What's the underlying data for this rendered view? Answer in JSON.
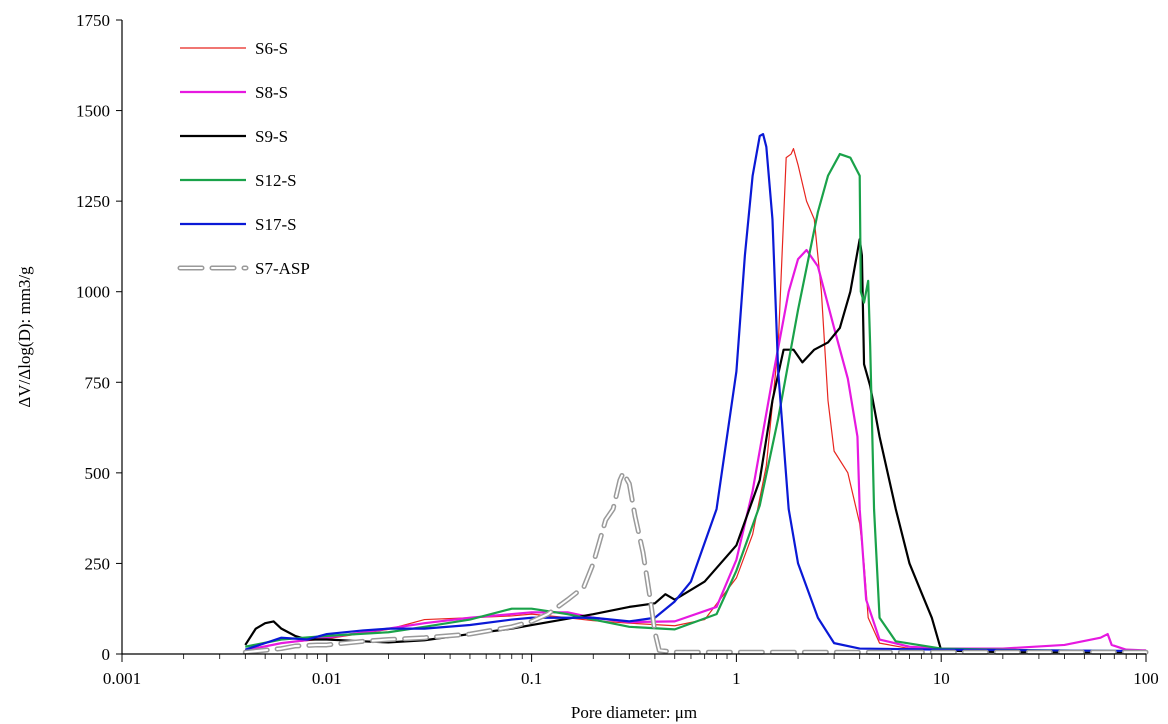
{
  "chart_data": {
    "type": "line",
    "xlabel": "Pore diameter: μm",
    "ylabel": "ΔV/Δlog(D): mm3/g",
    "xscale": "log",
    "xlim": [
      0.001,
      100
    ],
    "ylim": [
      0,
      1750
    ],
    "x_ticks": [
      0.001,
      0.01,
      0.1,
      1,
      10,
      100
    ],
    "x_tick_labels": [
      "0.001",
      "0.01",
      "0.1",
      "1",
      "10",
      "100"
    ],
    "y_ticks": [
      0,
      250,
      500,
      750,
      1000,
      1250,
      1500,
      1750
    ],
    "y_tick_labels": [
      "0",
      "250",
      "500",
      "750",
      "1000",
      "1250",
      "1500",
      "1750"
    ],
    "grid": false,
    "legend_position": "top-left",
    "series": [
      {
        "name": "S6-S",
        "color": "#e8251f",
        "style": "solid",
        "points": [
          [
            0.004,
            12
          ],
          [
            0.006,
            30
          ],
          [
            0.01,
            42
          ],
          [
            0.02,
            68
          ],
          [
            0.03,
            95
          ],
          [
            0.05,
            100
          ],
          [
            0.08,
            105
          ],
          [
            0.1,
            110
          ],
          [
            0.15,
            100
          ],
          [
            0.2,
            92
          ],
          [
            0.3,
            85
          ],
          [
            0.5,
            78
          ],
          [
            0.7,
            95
          ],
          [
            1.0,
            210
          ],
          [
            1.2,
            330
          ],
          [
            1.4,
            520
          ],
          [
            1.6,
            850
          ],
          [
            1.75,
            1370
          ],
          [
            1.85,
            1380
          ],
          [
            1.9,
            1395
          ],
          [
            2.0,
            1350
          ],
          [
            2.2,
            1250
          ],
          [
            2.4,
            1200
          ],
          [
            2.6,
            1000
          ],
          [
            2.8,
            700
          ],
          [
            3.0,
            560
          ],
          [
            3.5,
            500
          ],
          [
            4.0,
            360
          ],
          [
            4.2,
            250
          ],
          [
            4.4,
            100
          ],
          [
            5.0,
            30
          ],
          [
            7.0,
            15
          ],
          [
            10,
            12
          ],
          [
            30,
            8
          ],
          [
            100,
            5
          ]
        ]
      },
      {
        "name": "S8-S",
        "color": "#e619e0",
        "style": "solid",
        "points": [
          [
            0.004,
            10
          ],
          [
            0.006,
            30
          ],
          [
            0.01,
            45
          ],
          [
            0.02,
            70
          ],
          [
            0.03,
            85
          ],
          [
            0.05,
            100
          ],
          [
            0.08,
            110
          ],
          [
            0.1,
            115
          ],
          [
            0.15,
            115
          ],
          [
            0.2,
            100
          ],
          [
            0.3,
            88
          ],
          [
            0.5,
            90
          ],
          [
            0.8,
            130
          ],
          [
            1.0,
            260
          ],
          [
            1.2,
            450
          ],
          [
            1.5,
            760
          ],
          [
            1.8,
            1000
          ],
          [
            2.0,
            1090
          ],
          [
            2.2,
            1115
          ],
          [
            2.5,
            1070
          ],
          [
            3.0,
            900
          ],
          [
            3.5,
            760
          ],
          [
            3.9,
            600
          ],
          [
            4.0,
            400
          ],
          [
            4.3,
            150
          ],
          [
            5.0,
            40
          ],
          [
            7.0,
            20
          ],
          [
            10,
            15
          ],
          [
            20,
            15
          ],
          [
            40,
            25
          ],
          [
            60,
            45
          ],
          [
            65,
            55
          ],
          [
            68,
            25
          ],
          [
            80,
            12
          ],
          [
            100,
            10
          ]
        ]
      },
      {
        "name": "S9-S",
        "color": "#000000",
        "style": "solid",
        "points": [
          [
            0.004,
            25
          ],
          [
            0.0045,
            70
          ],
          [
            0.005,
            85
          ],
          [
            0.0055,
            90
          ],
          [
            0.006,
            70
          ],
          [
            0.007,
            50
          ],
          [
            0.008,
            40
          ],
          [
            0.01,
            40
          ],
          [
            0.015,
            35
          ],
          [
            0.02,
            32
          ],
          [
            0.03,
            38
          ],
          [
            0.05,
            55
          ],
          [
            0.08,
            70
          ],
          [
            0.1,
            80
          ],
          [
            0.2,
            110
          ],
          [
            0.3,
            130
          ],
          [
            0.4,
            140
          ],
          [
            0.45,
            165
          ],
          [
            0.5,
            150
          ],
          [
            0.7,
            200
          ],
          [
            1.0,
            300
          ],
          [
            1.3,
            480
          ],
          [
            1.5,
            700
          ],
          [
            1.7,
            840
          ],
          [
            1.9,
            840
          ],
          [
            2.1,
            805
          ],
          [
            2.4,
            840
          ],
          [
            2.8,
            860
          ],
          [
            3.2,
            900
          ],
          [
            3.6,
            1000
          ],
          [
            4.0,
            1145
          ],
          [
            4.1,
            1100
          ],
          [
            4.2,
            800
          ],
          [
            4.5,
            740
          ],
          [
            5.0,
            600
          ],
          [
            6.0,
            400
          ],
          [
            7.0,
            250
          ],
          [
            8.0,
            170
          ],
          [
            9.0,
            100
          ],
          [
            10,
            10
          ],
          [
            20,
            5
          ],
          [
            100,
            5
          ]
        ]
      },
      {
        "name": "S12-S",
        "color": "#1aa24a",
        "style": "solid",
        "points": [
          [
            0.004,
            20
          ],
          [
            0.006,
            40
          ],
          [
            0.01,
            50
          ],
          [
            0.02,
            60
          ],
          [
            0.03,
            75
          ],
          [
            0.05,
            95
          ],
          [
            0.08,
            125
          ],
          [
            0.1,
            125
          ],
          [
            0.15,
            110
          ],
          [
            0.2,
            95
          ],
          [
            0.3,
            75
          ],
          [
            0.5,
            68
          ],
          [
            0.8,
            110
          ],
          [
            1.0,
            230
          ],
          [
            1.3,
            410
          ],
          [
            1.6,
            650
          ],
          [
            2.0,
            950
          ],
          [
            2.5,
            1220
          ],
          [
            2.8,
            1320
          ],
          [
            3.2,
            1380
          ],
          [
            3.6,
            1370
          ],
          [
            4.0,
            1320
          ],
          [
            4.05,
            1000
          ],
          [
            4.2,
            970
          ],
          [
            4.4,
            1030
          ],
          [
            4.5,
            850
          ],
          [
            4.7,
            400
          ],
          [
            5.0,
            100
          ],
          [
            6.0,
            35
          ],
          [
            10,
            15
          ],
          [
            30,
            10
          ],
          [
            100,
            8
          ]
        ]
      },
      {
        "name": "S17-S",
        "color": "#0a19d6",
        "style": "solid",
        "points": [
          [
            0.004,
            12
          ],
          [
            0.005,
            30
          ],
          [
            0.006,
            45
          ],
          [
            0.008,
            40
          ],
          [
            0.01,
            55
          ],
          [
            0.015,
            65
          ],
          [
            0.02,
            70
          ],
          [
            0.03,
            70
          ],
          [
            0.05,
            80
          ],
          [
            0.08,
            95
          ],
          [
            0.1,
            100
          ],
          [
            0.15,
            100
          ],
          [
            0.2,
            100
          ],
          [
            0.3,
            90
          ],
          [
            0.4,
            100
          ],
          [
            0.5,
            145
          ],
          [
            0.6,
            200
          ],
          [
            0.8,
            400
          ],
          [
            1.0,
            780
          ],
          [
            1.1,
            1100
          ],
          [
            1.2,
            1320
          ],
          [
            1.3,
            1430
          ],
          [
            1.35,
            1435
          ],
          [
            1.4,
            1400
          ],
          [
            1.5,
            1200
          ],
          [
            1.6,
            780
          ],
          [
            1.8,
            400
          ],
          [
            2.0,
            250
          ],
          [
            2.5,
            100
          ],
          [
            3.0,
            30
          ],
          [
            4.0,
            15
          ],
          [
            10,
            12
          ],
          [
            100,
            8
          ]
        ]
      },
      {
        "name": "S7-ASP",
        "color": "#9a9a9a",
        "style": "dashed",
        "points": [
          [
            0.004,
            5
          ],
          [
            0.006,
            15
          ],
          [
            0.007,
            22
          ],
          [
            0.009,
            25
          ],
          [
            0.01,
            25
          ],
          [
            0.015,
            35
          ],
          [
            0.02,
            40
          ],
          [
            0.03,
            45
          ],
          [
            0.05,
            55
          ],
          [
            0.08,
            75
          ],
          [
            0.1,
            90
          ],
          [
            0.12,
            110
          ],
          [
            0.15,
            150
          ],
          [
            0.18,
            185
          ],
          [
            0.2,
            250
          ],
          [
            0.23,
            370
          ],
          [
            0.25,
            400
          ],
          [
            0.27,
            480
          ],
          [
            0.28,
            500
          ],
          [
            0.3,
            470
          ],
          [
            0.32,
            380
          ],
          [
            0.35,
            280
          ],
          [
            0.38,
            150
          ],
          [
            0.4,
            60
          ],
          [
            0.42,
            10
          ],
          [
            0.5,
            5
          ],
          [
            1.0,
            5
          ],
          [
            100,
            5
          ]
        ]
      }
    ]
  }
}
